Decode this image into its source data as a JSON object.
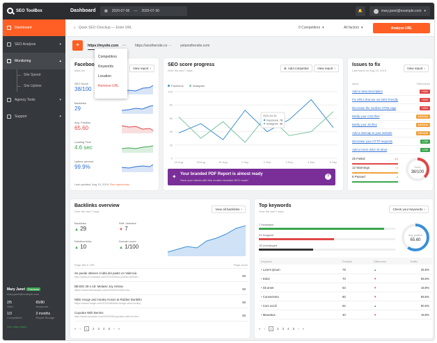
{
  "app": {
    "name": "SEO ToolBox"
  },
  "topbar": {
    "title": "Dashboard",
    "date_from": "2020-07-06",
    "date_to": "2020-07-30",
    "user_email": "mary.janet@example.com"
  },
  "sidebar": {
    "items": [
      {
        "label": "Dashboard"
      },
      {
        "label": "SEO Analysis"
      },
      {
        "label": "Monitoring"
      },
      {
        "label": "Agency Tools"
      },
      {
        "label": "Support"
      }
    ],
    "sub_items": [
      {
        "label": "Site Speed"
      },
      {
        "label": "Site Uptime"
      }
    ],
    "user": {
      "name": "Mary Janet",
      "badge": "Premium",
      "email": "mary.janet@example.com",
      "stats": [
        {
          "value": "2/5",
          "label": "Sites"
        },
        {
          "value": "65/80",
          "label": "Keywords"
        },
        {
          "value": "1/3",
          "label": "Competitors"
        },
        {
          "value": "3 months",
          "label": "Report Storage"
        }
      ],
      "link": "See other plans"
    }
  },
  "searchbar": {
    "placeholder": "Quick SEO Checkup — Enter URL",
    "competitors": "0 Competitors",
    "factors": "All factors",
    "analyze": "Analyze URL"
  },
  "tabs": {
    "items": [
      "https://mysite.com",
      "https://anothersite.co",
      "yetanothersite.com"
    ]
  },
  "context_menu": {
    "items": [
      "Competitors",
      "Keywords",
      "Location",
      "Remove URL"
    ]
  },
  "facebook": {
    "title": "Facebook",
    "subtitle": "https://m",
    "view": "View report",
    "metrics": [
      {
        "label": "SEO Score",
        "value": "38/100",
        "color": "#2f6fd1"
      },
      {
        "label": "Backlinks",
        "value": "29",
        "color": "#2f6fd1"
      },
      {
        "label": "Avg. Position",
        "value": "65.60",
        "color": "#e04646"
      },
      {
        "label": "Loading Time",
        "value": "4.6 sec",
        "color": "#3aa54d"
      },
      {
        "label": "Uptime percent",
        "value": "99.9%",
        "color": "#2f6fd1"
      }
    ],
    "footer": "Last updated, Aug 19, 2019.",
    "run": "Run report now"
  },
  "progress": {
    "title": "SEO score progress",
    "subtitle": "Over the last 7 days",
    "add": "Add competitor",
    "view": "View report",
    "legend": [
      {
        "name": "Facebook",
        "color": "#3b8fd6"
      },
      {
        "name": "Instagram",
        "color": "#7cc59f"
      }
    ],
    "tooltip": {
      "date": "2020-04-15",
      "rows": [
        {
          "name": "Facebook",
          "value": "78"
        },
        {
          "name": "Instagram",
          "value": "39"
        }
      ]
    },
    "banner_title": "Your branded PDF Report is almost ready",
    "banner_sub": "Save your clients with this modern branded SEO report"
  },
  "issues": {
    "title": "Issues to fix",
    "subtitle": "Last found on Aug 19, 2019",
    "view": "View report",
    "col_issue": "Issue",
    "col_rel": "Relevance",
    "rows": [
      {
        "t": "Add a meta description",
        "r": "HIGH",
        "c": "#e04646"
      },
      {
        "t": "Fix URLs that are not SEO friendly",
        "r": "HIGH",
        "c": "#e04646"
      },
      {
        "t": "Decrease the number HTML tags",
        "r": "HIGH",
        "c": "#e04646"
      },
      {
        "t": "Minify your CSS files",
        "r": "MEDIUM",
        "c": "#f0a13a"
      },
      {
        "t": "Minify your JS files",
        "r": "MEDIUM",
        "c": "#f0a13a"
      },
      {
        "t": "Add a sitemap to your website",
        "r": "MEDIUM",
        "c": "#f0a13a"
      },
      {
        "t": "Decrease your HTTP requests",
        "r": "LOW",
        "c": "#3aa54d"
      },
      {
        "t": "Add a lorem dolor sit amet",
        "r": "LOW",
        "c": "#3aa54d"
      }
    ],
    "summary": [
      {
        "label": "25 Failed",
        "value": "-12",
        "color": "#e04646"
      },
      {
        "label": "12 Warnings",
        "value": "+8",
        "color": "#f0a13a"
      },
      {
        "label": "8 Passed",
        "value": "-4",
        "color": "#3aa54d"
      }
    ],
    "score_label": "Score",
    "score": "38/100",
    "score_pct": 0.38
  },
  "backlinks": {
    "title": "Backlinks overview",
    "subtitle": "Over the last 7 days",
    "view": "View all backlinks",
    "metrics": [
      {
        "label": "Backlinks",
        "value": "29",
        "arrow": "▲",
        "color": "#3aa54d"
      },
      {
        "label": "Reff. domains",
        "value": "7",
        "arrow": "▼",
        "color": "#e04646"
      },
      {
        "label": "Nofollow links",
        "value": "10",
        "arrow": "▲",
        "color": "#3aa54d"
      },
      {
        "label": "Domain score",
        "value": "1/100",
        "arrow": "▲",
        "color": "#3aa54d"
      }
    ],
    "col_page": "Page title & URL",
    "col_score": "Page score",
    "rows": [
      {
        "t": "Se puede obtener el alta del padre en Valencia",
        "u": "http://www.el-example.com/2019/09/se-puede-obtener...",
        "s": "50"
      },
      {
        "t": "BB BIO 29-1-18: Melanie Joy Hristov",
        "u": "https://www.bbexample.com/2018/01/29/bb-bio...",
        "s": "60"
      },
      {
        "t": "Nikki Hooge and Hooley Hoson at Rubber Bordello",
        "u": "https://www.hooge.com/2019/08/nikki-hooge-and-hooley...",
        "s": "50"
      },
      {
        "t": "Cupcake With Berries",
        "u": "http://www.example.com/2019/05/cupcake-with-berries...",
        "s": "50"
      }
    ],
    "pages": [
      "1",
      "2",
      "3",
      "4",
      "5"
    ]
  },
  "keywords": {
    "title": "Top keywords",
    "subtitle": "Over the last 7 days",
    "check": "Check your keywords",
    "bars": [
      {
        "label": "7 Increased",
        "pct": 0.92,
        "color": "#3aa54d"
      },
      {
        "label": "21 Dropped",
        "pct": 0.55,
        "color": "#e04646"
      },
      {
        "label": "15 Unchanged",
        "pct": 0.4,
        "color": "#333"
      }
    ],
    "avg_label": "Avg. position",
    "avg": "65.60",
    "avg_pct": 0.6,
    "col_kw": "Keyword",
    "col_pos": "Position",
    "col_diff": "Difference",
    "col_traffic": "Traffic",
    "rows": [
      {
        "k": "Lorem ipsum",
        "p": "79",
        "d": "▲",
        "dc": "#3aa54d",
        "t": "25.5%"
      },
      {
        "k": "Dolor",
        "p": "70",
        "d": "▼",
        "dc": "#e04646",
        "t": "69.5%"
      },
      {
        "k": "Sit amet",
        "p": "63",
        "d": "▼",
        "dc": "#e04646",
        "t": "18.9%"
      },
      {
        "k": "Consectetur",
        "p": "60",
        "d": "▼",
        "dc": "#e04646",
        "t": "99.5%"
      },
      {
        "k": "Cum sociil",
        "p": "52",
        "d": "▲",
        "dc": "#3aa54d",
        "t": "80.0%"
      },
      {
        "k": "Mauratus",
        "p": "40",
        "d": "▼",
        "dc": "#e04646",
        "t": "19.8%"
      }
    ],
    "pages": [
      "1",
      "2",
      "3",
      "4",
      "5"
    ]
  },
  "chart_data": {
    "type": "line",
    "x": [
      "29 Aug",
      "30 Aug",
      "31 Aug",
      "1 Sep",
      "2 Sep",
      "3 Sep",
      "4 Sep",
      "5 Sep"
    ],
    "series": [
      {
        "name": "Facebook",
        "values": [
          38,
          52,
          28,
          72,
          40,
          58,
          88,
          46
        ]
      },
      {
        "name": "Instagram",
        "values": [
          62,
          30,
          55,
          24,
          65,
          34,
          40,
          70
        ]
      }
    ],
    "y_ticks": [
      "100",
      "80",
      "60",
      "40",
      "20",
      "0"
    ],
    "ylim": [
      0,
      100
    ]
  }
}
